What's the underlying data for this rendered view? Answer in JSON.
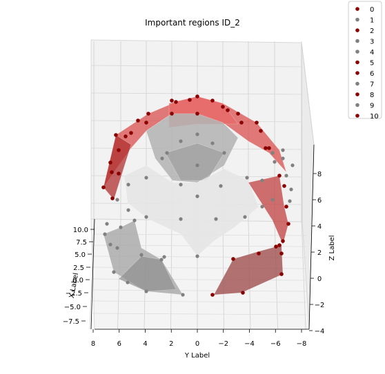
{
  "chart_data": {
    "type": "scatter",
    "title": "Important regions ID_2",
    "xlabel": "X Label",
    "ylabel": "Y Label",
    "zlabel": "Z Label",
    "x_ticks": [
      "10.0",
      "7.5",
      "5.0",
      "2.5",
      "0.0",
      "−2.5",
      "−5.0",
      "−7.5"
    ],
    "y_ticks": [
      "8",
      "6",
      "4",
      "2",
      "0",
      "−2",
      "−4",
      "−6",
      "−8"
    ],
    "z_ticks": [
      "8",
      "6",
      "4",
      "2",
      "0",
      "−2",
      "−4"
    ],
    "ylim": [
      8,
      -8
    ],
    "zlim": [
      -4,
      9
    ],
    "grid": true,
    "legend_position": "top-right",
    "colors": {
      "red": "#8b0000",
      "gray": "#808080",
      "red_fill": "#d94f4f",
      "gray_fill": "#b3b3b3"
    },
    "series": [
      {
        "name": "0",
        "color": "#8b0000"
      },
      {
        "name": "1",
        "color": "#808080"
      },
      {
        "name": "2",
        "color": "#8b0000"
      },
      {
        "name": "3",
        "color": "#808080"
      },
      {
        "name": "4",
        "color": "#808080"
      },
      {
        "name": "5",
        "color": "#8b0000"
      },
      {
        "name": "6",
        "color": "#8b0000"
      },
      {
        "name": "7",
        "color": "#808080"
      },
      {
        "name": "8",
        "color": "#8b0000"
      },
      {
        "name": "9",
        "color": "#808080"
      },
      {
        "name": "10",
        "color": "#8b0000"
      }
    ]
  }
}
